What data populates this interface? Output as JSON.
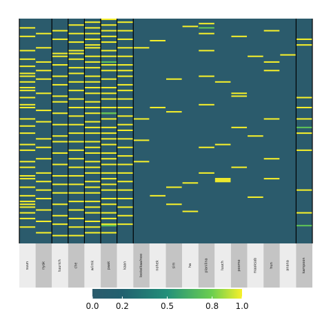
{
  "chart_data": {
    "type": "heatmap",
    "columns": [
      "suun",
      "nyak",
      "tuurich",
      "che",
      "wiimk",
      "paak",
      "kaan",
      "lookelkaalnoo",
      "nohek",
      "sim",
      "ha",
      "planilina",
      "luuch",
      "poomo",
      "maaksab",
      "hun",
      "anana",
      "kampoon"
    ],
    "column_groups": [
      [
        0,
        1
      ],
      [
        2
      ],
      [
        3
      ],
      [
        4
      ],
      [
        5
      ],
      [
        6
      ],
      [
        7,
        16
      ],
      [
        17
      ]
    ],
    "row_count": 158,
    "color_scale": {
      "stops": [
        {
          "value": 0.0,
          "color": "#2b5b6c"
        },
        {
          "value": 0.2,
          "color": "#21606f"
        },
        {
          "value": 0.5,
          "color": "#23907a"
        },
        {
          "value": 0.8,
          "color": "#6ccf4f"
        },
        {
          "value": 1.0,
          "color": "#f7f02a"
        }
      ],
      "tick_labels": [
        "0.0",
        "0.2",
        "0.5",
        "0.8",
        "1.0"
      ],
      "tick_values": [
        0.0,
        0.2,
        0.5,
        0.8,
        1.0
      ],
      "range": [
        0,
        1
      ]
    },
    "base_value": 0.05,
    "highlights": [
      {
        "col": 0,
        "rows": [
          6,
          12,
          22,
          28,
          33,
          38,
          40,
          44,
          48,
          50,
          55,
          60,
          62,
          70,
          75,
          80,
          88,
          92,
          100,
          104,
          110,
          112,
          118,
          124,
          128,
          130,
          132,
          136,
          140,
          146
        ],
        "value": 1.0
      },
      {
        "col": 1,
        "rows": [
          10,
          20,
          30,
          36,
          42,
          52,
          64,
          72,
          84,
          90,
          98,
          108,
          114,
          120,
          126,
          134,
          142,
          150
        ],
        "value": 1.0
      },
      {
        "col": 2,
        "rows": [
          8,
          14,
          24,
          26,
          32,
          40,
          46,
          54,
          58,
          66,
          74,
          82,
          86,
          94,
          102,
          110,
          116,
          122,
          130,
          138,
          144,
          152
        ],
        "value": 1.0
      },
      {
        "col": 3,
        "rows": [
          4,
          10,
          16,
          22,
          24,
          28,
          34,
          38,
          44,
          50,
          56,
          62,
          68,
          74,
          80,
          86,
          92,
          98,
          104,
          110,
          116,
          122,
          128,
          134,
          140,
          146,
          152
        ],
        "value": 1.0
      },
      {
        "col": 4,
        "rows": [
          2,
          6,
          10,
          14,
          18,
          20,
          26,
          30,
          34,
          40,
          44,
          48,
          52,
          58,
          62,
          66,
          72,
          76,
          80,
          86,
          90,
          94,
          100,
          104,
          108,
          114,
          118,
          122,
          128,
          132,
          136,
          142,
          146,
          150
        ],
        "value": 1.0
      },
      {
        "col": 5,
        "rows": [
          0,
          4,
          8,
          12,
          16,
          22,
          26,
          32,
          36,
          42,
          48,
          52,
          56,
          62,
          66,
          70,
          76,
          80,
          84,
          88,
          94,
          98,
          102,
          108,
          112,
          116,
          120,
          126,
          130,
          136,
          140,
          144,
          150
        ],
        "value": 1.0
      },
      {
        "col": 5,
        "rows": [
          30,
          66,
          145
        ],
        "value": 0.75
      },
      {
        "col": 6,
        "rows": [
          2,
          8,
          14,
          20,
          26,
          32,
          36,
          40,
          46,
          50,
          56,
          62,
          68,
          74,
          78,
          84,
          90,
          96,
          102,
          108,
          114,
          120,
          126,
          132,
          138,
          144
        ],
        "value": 1.0
      },
      {
        "col": 7,
        "rows": [
          20,
          70,
          85,
          100
        ],
        "value": 1.0
      },
      {
        "col": 8,
        "rows": [
          15,
          62,
          124
        ],
        "value": 1.0
      },
      {
        "col": 9,
        "rows": [
          42,
          65,
          118,
          130
        ],
        "value": 1.0
      },
      {
        "col": 10,
        "rows": [
          5,
          115,
          135
        ],
        "value": 1.0
      },
      {
        "col": 11,
        "rows": [
          3,
          10,
          22,
          40,
          60,
          90,
          108
        ],
        "value": 1.0
      },
      {
        "col": 11,
        "rows": [
          6
        ],
        "value": 0.75
      },
      {
        "col": 12,
        "rows": [
          44,
          88,
          112,
          113,
          114
        ],
        "value": 1.0
      },
      {
        "col": 13,
        "rows": [
          12,
          52,
          54,
          76,
          104
        ],
        "value": 1.0
      },
      {
        "col": 14,
        "rows": [
          26,
          82,
          125
        ],
        "value": 1.0
      },
      {
        "col": 15,
        "rows": [
          8,
          30,
          36,
          70,
          98,
          112
        ],
        "value": 1.0
      },
      {
        "col": 16,
        "rows": [
          25
        ],
        "value": 1.0
      },
      {
        "col": 17,
        "rows": [
          14,
          18,
          55,
          62,
          70,
          80,
          92,
          120,
          136
        ],
        "value": 1.0
      },
      {
        "col": 17,
        "rows": [
          76,
          145
        ],
        "value": 0.75
      }
    ]
  },
  "colors": {
    "background": "#2b5b6c",
    "label_band_a": "#ececec",
    "label_band_b": "#c4c4c4",
    "separator": "#000000"
  }
}
